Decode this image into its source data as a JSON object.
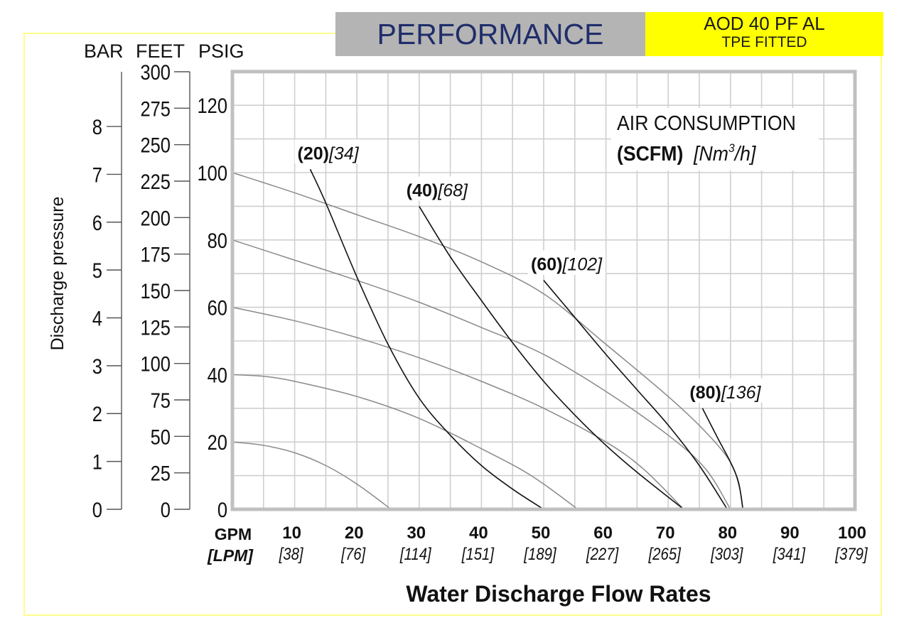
{
  "header": {
    "title": "PERFORMANCE",
    "model_line1": "AOD 40 PF AL",
    "model_line2": "TPE FITTED",
    "title_color": "#1f2d6b",
    "title_bg": "#b4b4b4",
    "model_bg": "#ffff00"
  },
  "chart_data": {
    "type": "line",
    "title": "PERFORMANCE",
    "xlabel": "Water Discharge Flow Rates",
    "ylabel": "Discharge pressure",
    "xlim": [
      0,
      100
    ],
    "ylim": [
      0,
      130
    ],
    "grid": true,
    "x_unit_labels": {
      "primary": "GPM",
      "secondary": "[LPM]"
    },
    "x_ticks": [
      {
        "gpm": "10",
        "lpm": "[38]",
        "value": 10
      },
      {
        "gpm": "20",
        "lpm": "[76]",
        "value": 20
      },
      {
        "gpm": "30",
        "lpm": "[114]",
        "value": 30
      },
      {
        "gpm": "40",
        "lpm": "[151]",
        "value": 40
      },
      {
        "gpm": "50",
        "lpm": "[189]",
        "value": 50
      },
      {
        "gpm": "60",
        "lpm": "[227]",
        "value": 60
      },
      {
        "gpm": "70",
        "lpm": "[265]",
        "value": 70
      },
      {
        "gpm": "80",
        "lpm": "[303]",
        "value": 80
      },
      {
        "gpm": "90",
        "lpm": "[341]",
        "value": 90
      },
      {
        "gpm": "100",
        "lpm": "[379]",
        "value": 100
      }
    ],
    "y_axes": {
      "psig": {
        "label": "PSIG",
        "ticks": [
          0,
          20,
          40,
          60,
          80,
          100,
          120
        ]
      },
      "feet": {
        "label": "FEET",
        "ticks": [
          0,
          25,
          50,
          75,
          100,
          125,
          150,
          175,
          200,
          225,
          250,
          275,
          300
        ]
      },
      "bar": {
        "label": "BAR",
        "ticks": [
          0,
          1,
          2,
          3,
          4,
          5,
          6,
          7,
          8
        ]
      }
    },
    "air_consumption_title": "AIR CONSUMPTION",
    "air_consumption_units_bold": "(SCFM)",
    "air_consumption_units_italic": "[Nm",
    "air_consumption_units_sup": "3",
    "air_consumption_units_tail": "/h]",
    "pressure_curves": [
      {
        "name": "20 PSIG supply",
        "points": [
          [
            0,
            20
          ],
          [
            5,
            19
          ],
          [
            10,
            16.8
          ],
          [
            15,
            13
          ],
          [
            20,
            7.5
          ],
          [
            25.5,
            0
          ]
        ]
      },
      {
        "name": "40 PSIG supply",
        "points": [
          [
            0,
            40
          ],
          [
            5,
            39.5
          ],
          [
            10,
            38
          ],
          [
            20,
            33.5
          ],
          [
            30,
            27
          ],
          [
            40,
            18
          ],
          [
            48,
            10
          ],
          [
            55.5,
            0
          ]
        ]
      },
      {
        "name": "60 PSIG supply",
        "points": [
          [
            0,
            60
          ],
          [
            10,
            56
          ],
          [
            20,
            51
          ],
          [
            30,
            45
          ],
          [
            40,
            38
          ],
          [
            50,
            30
          ],
          [
            60,
            20
          ],
          [
            66,
            12
          ],
          [
            72.5,
            0
          ]
        ]
      },
      {
        "name": "80 PSIG supply",
        "points": [
          [
            0,
            80
          ],
          [
            10,
            74
          ],
          [
            20,
            68
          ],
          [
            30,
            61.5
          ],
          [
            40,
            54
          ],
          [
            50,
            46
          ],
          [
            60,
            35
          ],
          [
            70,
            22
          ],
          [
            76,
            12
          ],
          [
            80,
            0
          ]
        ]
      },
      {
        "name": "100 PSIG supply",
        "points": [
          [
            0,
            100
          ],
          [
            10,
            94
          ],
          [
            20,
            87.5
          ],
          [
            30,
            81
          ],
          [
            40,
            73.5
          ],
          [
            50,
            64
          ],
          [
            60,
            49
          ],
          [
            70,
            33.5
          ],
          [
            76,
            23
          ],
          [
            80,
            14
          ],
          [
            81.5,
            6
          ],
          [
            82,
            0
          ]
        ]
      }
    ],
    "air_curves": [
      {
        "label_bold": "(20)",
        "label_italic": "[34]",
        "scfm": 20,
        "points": [
          [
            12.5,
            101
          ],
          [
            15,
            91
          ],
          [
            20,
            69
          ],
          [
            25,
            49
          ],
          [
            30,
            33
          ],
          [
            35,
            22
          ],
          [
            40,
            13
          ],
          [
            45,
            6
          ],
          [
            50,
            0
          ]
        ]
      },
      {
        "label_bold": "(40)",
        "label_italic": "[68]",
        "scfm": 40,
        "points": [
          [
            30,
            90
          ],
          [
            35,
            75
          ],
          [
            40,
            62
          ],
          [
            45,
            49.5
          ],
          [
            50,
            38
          ],
          [
            55,
            28
          ],
          [
            60,
            19
          ],
          [
            65,
            11
          ],
          [
            72.5,
            0
          ]
        ]
      },
      {
        "label_bold": "(60)",
        "label_italic": "[102]",
        "scfm": 60,
        "points": [
          [
            50,
            68
          ],
          [
            55,
            57
          ],
          [
            60,
            46
          ],
          [
            65,
            35.5
          ],
          [
            70,
            25
          ],
          [
            75,
            13
          ],
          [
            79.5,
            0
          ]
        ]
      },
      {
        "label_bold": "(80)",
        "label_italic": "[136]",
        "scfm": 80,
        "points": [
          [
            75.5,
            30
          ],
          [
            78,
            21
          ],
          [
            80,
            14
          ],
          [
            81.3,
            8
          ],
          [
            82,
            0
          ]
        ]
      }
    ]
  }
}
